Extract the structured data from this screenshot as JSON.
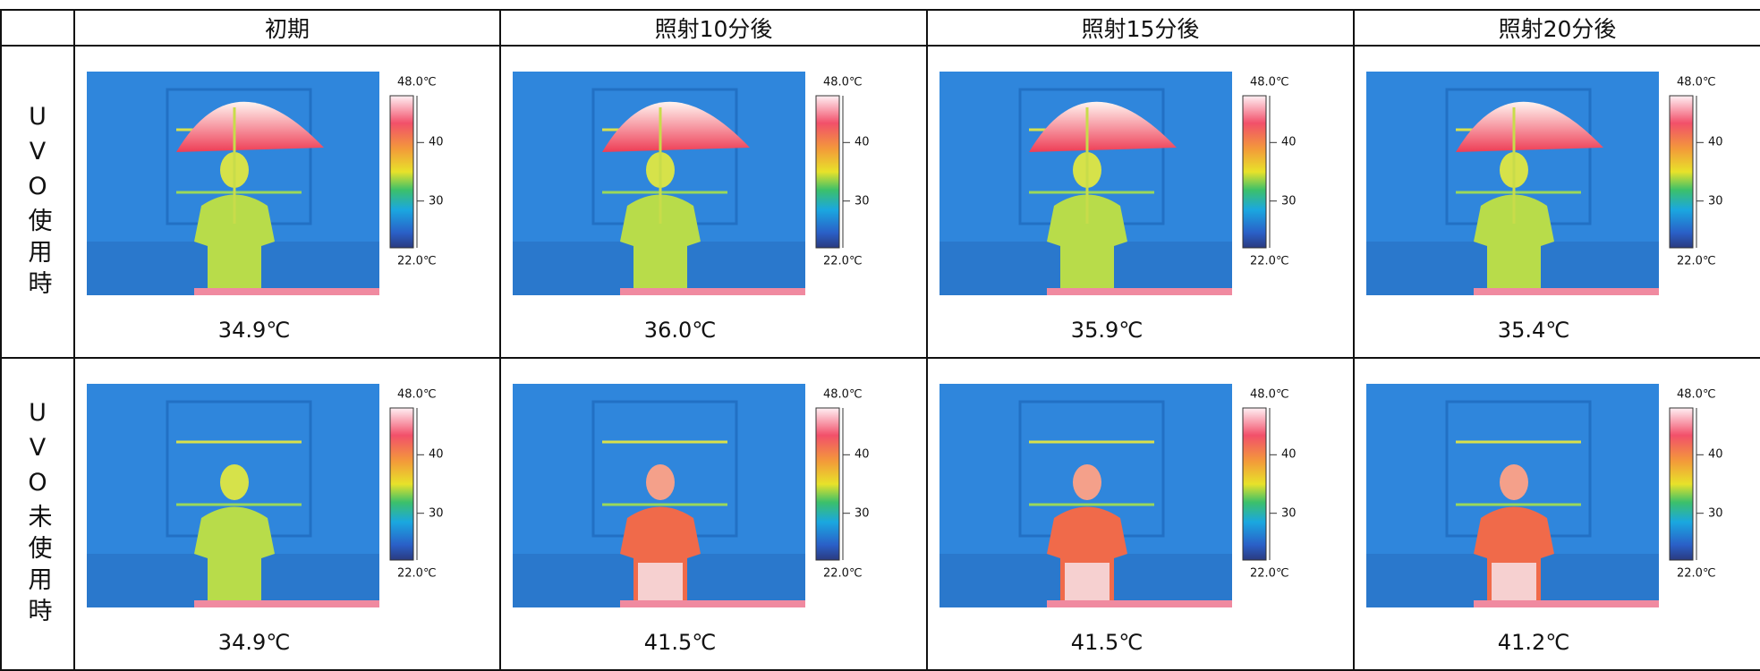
{
  "table": {
    "columns": [
      "初期",
      "照射10分後",
      "照射15分後",
      "照射20分後"
    ],
    "rows": [
      {
        "label": "UVO使用時",
        "cells": [
          "34.9℃",
          "36.0℃",
          "35.9℃",
          "35.4℃"
        ]
      },
      {
        "label": "UVO未使用時",
        "cells": [
          "34.9℃",
          "41.5℃",
          "41.5℃",
          "41.2℃"
        ]
      }
    ],
    "colorbar": {
      "max": {
        "value": 48,
        "label": "48.0℃"
      },
      "min": {
        "value": 22,
        "label": "22.0℃"
      },
      "ticks": [
        40,
        30
      ]
    }
  }
}
